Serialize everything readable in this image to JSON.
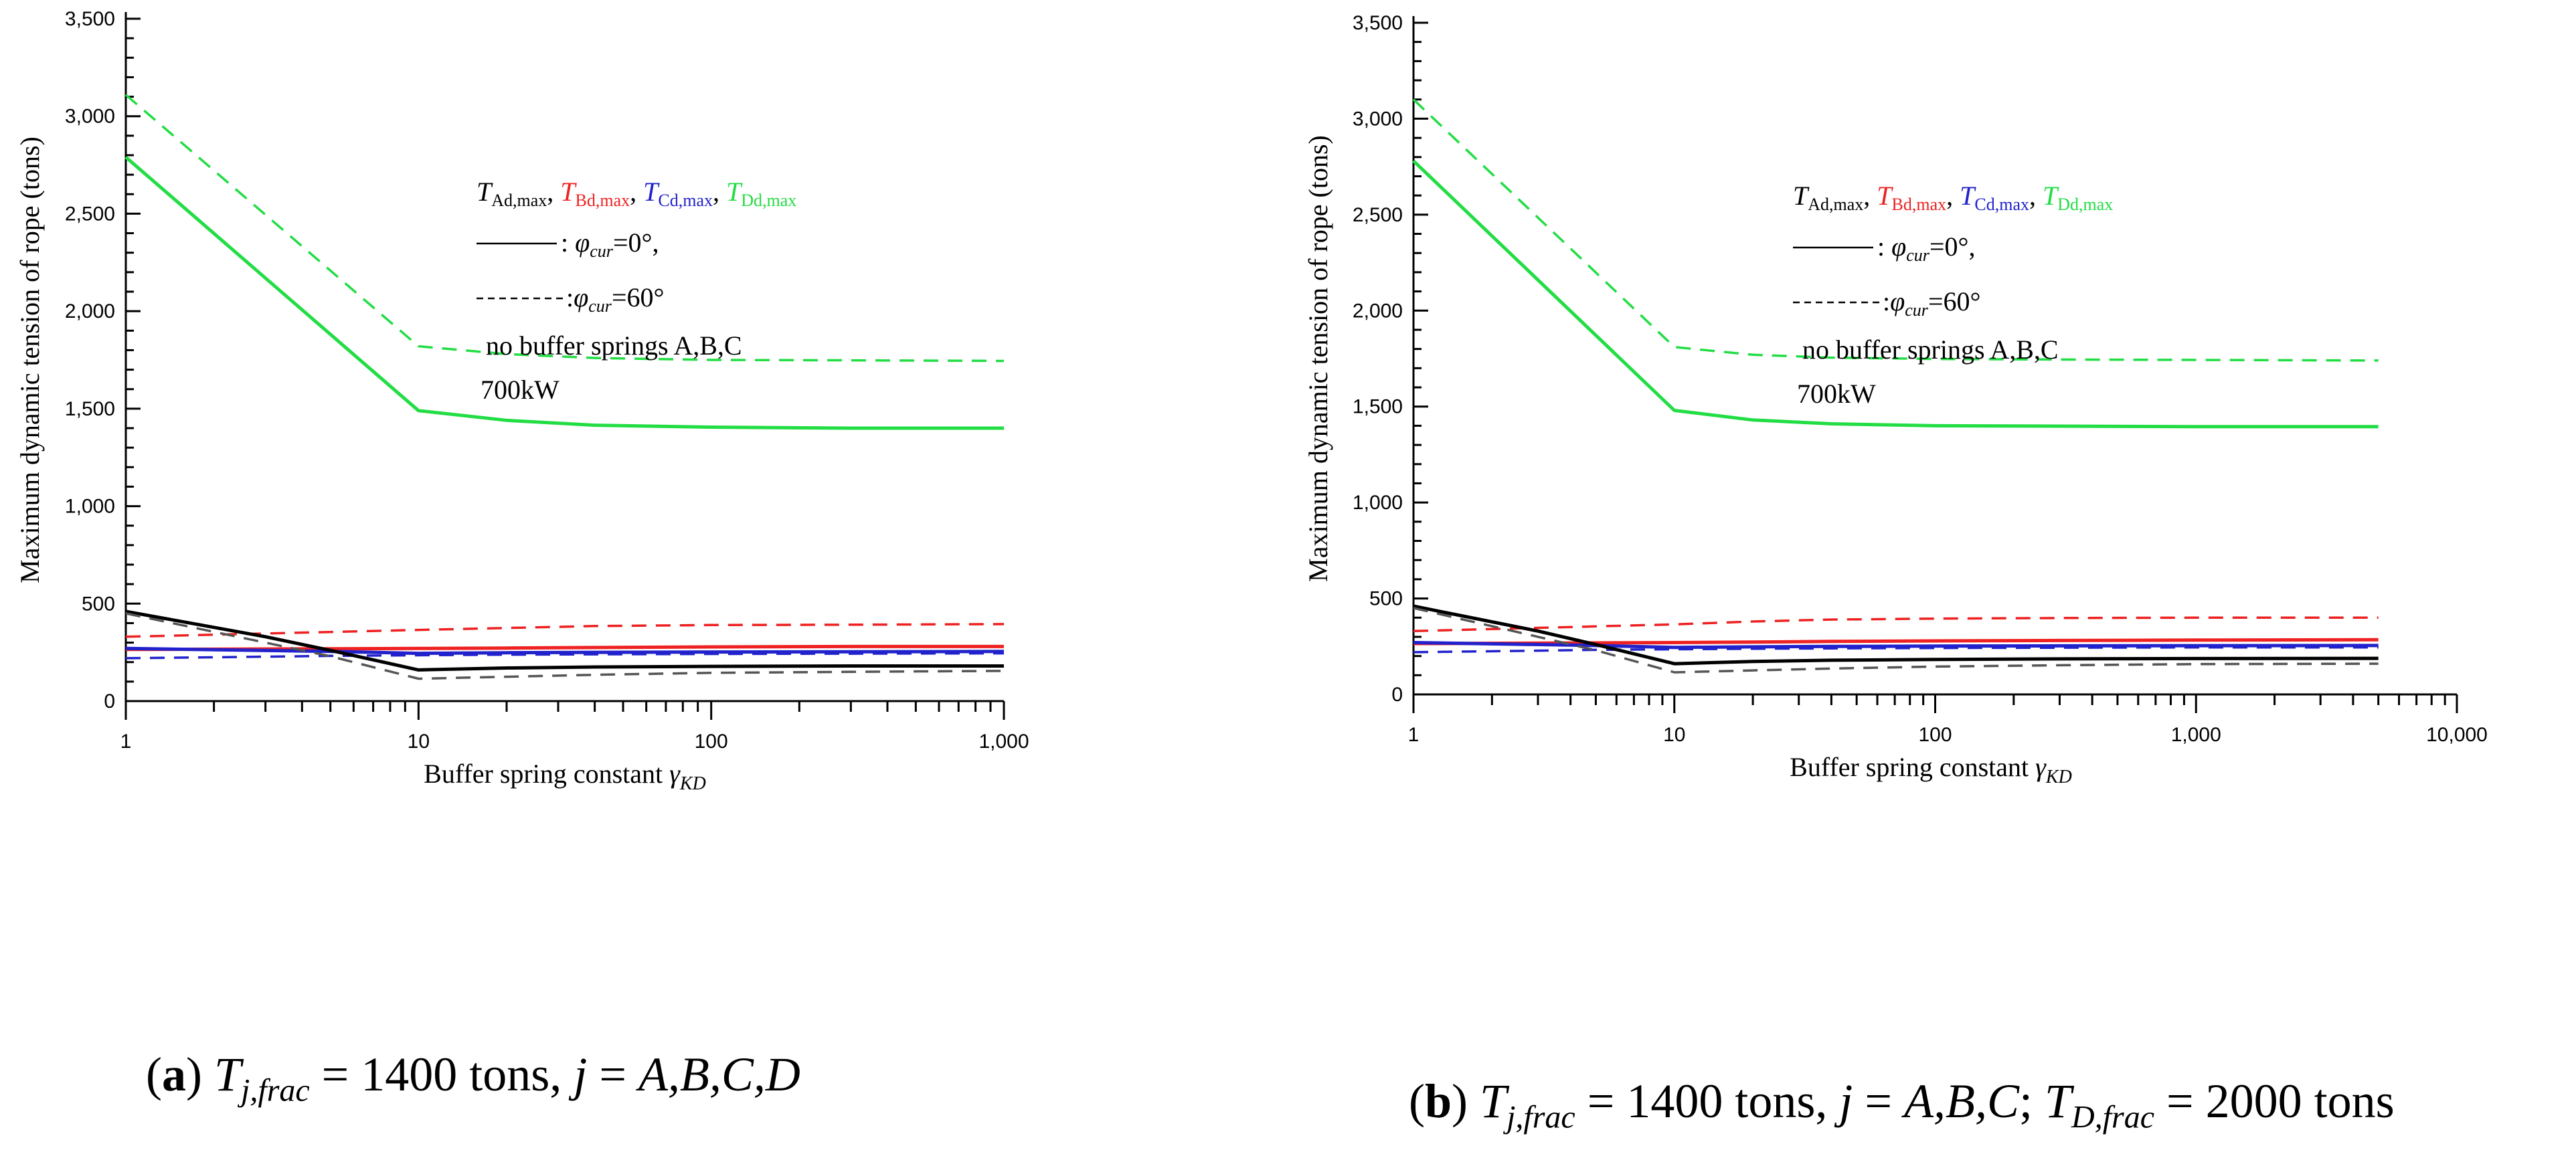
{
  "chart_data": [
    {
      "type": "line",
      "panel_label": "a",
      "caption": {
        "prefix": "(",
        "label": "a",
        "suffix": ")",
        "var_main": "T",
        "var_sub": "j,frac",
        "text1": " = 1400 tons, ",
        "var2": "j",
        "text2": " = ",
        "var3": "A,B,C,D",
        "text3": "",
        "var4": "",
        "var4_sub": "",
        "text4": ""
      },
      "xlabel": "Buffer spring constant ",
      "xlabel_symbol": "γ",
      "xlabel_symbol_sub": "KD",
      "ylabel": "Maximum dynamic tension of rope (tons)",
      "xscale": "log",
      "xlim": [
        1,
        1000
      ],
      "ylim": [
        0,
        3500
      ],
      "yticks": [
        0,
        500,
        1000,
        1500,
        2000,
        2500,
        3000,
        3500
      ],
      "ytick_labels": [
        "0",
        "500",
        "1,000",
        "1,500",
        "2,000",
        "2,500",
        "3,000",
        "3,500"
      ],
      "xticks": [
        1,
        10,
        100,
        1000
      ],
      "xtick_labels": [
        "1",
        "10",
        "100",
        "1,000"
      ],
      "legend": {
        "t_symbol": "T",
        "items": [
          {
            "sub": "Ad,max",
            "color": "#000000"
          },
          {
            "sub": "Bd,max",
            "color": "#ee2222"
          },
          {
            "sub": "Cd,max",
            "color": "#2222cc"
          },
          {
            "sub": "Dd,max",
            "color": "#22dd44"
          }
        ],
        "solid_prefix": ": ",
        "solid_phi": "φ",
        "solid_sub": "cur",
        "solid_value": "=0°,",
        "dashed_prefix": ":",
        "dashed_phi": "φ",
        "dashed_sub": "cur",
        "dashed_value": "=60°",
        "note1": "no buffer springs A,B,C",
        "note2": "700kW"
      },
      "series": [
        {
          "name": "T_Dd,max phi=0",
          "color": "#22dd44",
          "style": "solid",
          "x": [
            1,
            10,
            20,
            40,
            100,
            300,
            1000
          ],
          "y": [
            2790,
            1490,
            1440,
            1415,
            1405,
            1400,
            1400
          ]
        },
        {
          "name": "T_Dd,max phi=60",
          "color": "#22dd44",
          "style": "dashed",
          "x": [
            1,
            10,
            20,
            40,
            100,
            300,
            1000
          ],
          "y": [
            3110,
            1820,
            1780,
            1760,
            1750,
            1748,
            1745
          ]
        },
        {
          "name": "T_Bd,max phi=60",
          "color": "#ee2222",
          "style": "dashed",
          "x": [
            1,
            10,
            20,
            40,
            100,
            300,
            1000
          ],
          "y": [
            330,
            365,
            375,
            385,
            390,
            392,
            395
          ]
        },
        {
          "name": "T_Bd,max phi=0",
          "color": "#ee2222",
          "style": "solid",
          "x": [
            1,
            10,
            20,
            40,
            100,
            300,
            1000
          ],
          "y": [
            265,
            270,
            272,
            275,
            278,
            280,
            280
          ]
        },
        {
          "name": "T_Cd,max phi=0",
          "color": "#2222cc",
          "style": "solid",
          "x": [
            1,
            5,
            10,
            20,
            40,
            100,
            300,
            1000
          ],
          "y": [
            270,
            255,
            245,
            248,
            250,
            252,
            253,
            255
          ]
        },
        {
          "name": "T_Cd,max phi=60",
          "color": "#2222cc",
          "style": "dashed",
          "x": [
            1,
            3,
            5,
            10,
            20,
            40,
            100,
            1000
          ],
          "y": [
            220,
            228,
            232,
            235,
            238,
            240,
            242,
            245
          ]
        },
        {
          "name": "T_Ad,max phi=0",
          "color": "#000000",
          "style": "solid",
          "x": [
            1,
            3,
            5,
            10,
            20,
            40,
            100,
            300,
            1000
          ],
          "y": [
            460,
            330,
            260,
            160,
            170,
            175,
            178,
            180,
            180
          ]
        },
        {
          "name": "T_Ad,max phi=60",
          "color": "#555555",
          "style": "dashed",
          "x": [
            1,
            3,
            5,
            10,
            20,
            40,
            100,
            300,
            1000
          ],
          "y": [
            450,
            300,
            230,
            115,
            125,
            135,
            145,
            150,
            155
          ]
        }
      ]
    },
    {
      "type": "line",
      "panel_label": "b",
      "caption": {
        "prefix": "(",
        "label": "b",
        "suffix": ")",
        "var_main": "T",
        "var_sub": "j,frac",
        "text1": " = 1400 tons, ",
        "var2": "j",
        "text2": " = ",
        "var3": "A,B,C",
        "text3": "; ",
        "var4": "T",
        "var4_sub": "D,frac",
        "text4": " = 2000 tons"
      },
      "xlabel": "Buffer spring constant ",
      "xlabel_symbol": "γ",
      "xlabel_symbol_sub": "KD",
      "ylabel": "Maximum dynamic tension of rope (tons)",
      "xscale": "log",
      "xlim": [
        1,
        10000
      ],
      "ylim": [
        0,
        3500
      ],
      "yticks": [
        0,
        500,
        1000,
        1500,
        2000,
        2500,
        3000,
        3500
      ],
      "ytick_labels": [
        "0",
        "500",
        "1,000",
        "1,500",
        "2,000",
        "2,500",
        "3,000",
        "3,500"
      ],
      "xticks": [
        1,
        10,
        100,
        1000,
        10000
      ],
      "xtick_labels": [
        "1",
        "10",
        "100",
        "1,000",
        "10,000"
      ],
      "legend": {
        "t_symbol": "T",
        "items": [
          {
            "sub": "Ad,max",
            "color": "#000000"
          },
          {
            "sub": "Bd,max",
            "color": "#ee2222"
          },
          {
            "sub": "Cd,max",
            "color": "#2222cc"
          },
          {
            "sub": "Dd,max",
            "color": "#22dd44"
          }
        ],
        "solid_prefix": ": ",
        "solid_phi": "φ",
        "solid_sub": "cur",
        "solid_value": "=0°,",
        "dashed_prefix": ":",
        "dashed_phi": "φ",
        "dashed_sub": "cur",
        "dashed_value": "=60°",
        "note1": "no buffer springs A,B,C",
        "note2": "700kW"
      },
      "series": [
        {
          "name": "T_Dd,max phi=0",
          "color": "#22dd44",
          "style": "solid",
          "x": [
            1,
            10,
            20,
            40,
            100,
            300,
            1000,
            5000
          ],
          "y": [
            2780,
            1480,
            1430,
            1410,
            1400,
            1398,
            1395,
            1395
          ]
        },
        {
          "name": "T_Dd,max phi=60",
          "color": "#22dd44",
          "style": "dashed",
          "x": [
            1,
            10,
            20,
            40,
            100,
            300,
            1000,
            5000
          ],
          "y": [
            3100,
            1810,
            1770,
            1755,
            1748,
            1745,
            1743,
            1740
          ]
        },
        {
          "name": "T_Bd,max phi=60",
          "color": "#ee2222",
          "style": "dashed",
          "x": [
            1,
            10,
            20,
            40,
            100,
            300,
            1000,
            5000
          ],
          "y": [
            330,
            365,
            380,
            390,
            395,
            398,
            400,
            400
          ]
        },
        {
          "name": "T_Bd,max phi=0",
          "color": "#ee2222",
          "style": "solid",
          "x": [
            1,
            10,
            20,
            40,
            100,
            300,
            1000,
            5000
          ],
          "y": [
            265,
            270,
            273,
            276,
            279,
            281,
            283,
            285
          ]
        },
        {
          "name": "T_Cd,max phi=0",
          "color": "#2222cc",
          "style": "solid",
          "x": [
            1,
            5,
            10,
            20,
            40,
            100,
            300,
            1000,
            5000
          ],
          "y": [
            270,
            255,
            245,
            248,
            250,
            252,
            253,
            254,
            255
          ]
        },
        {
          "name": "T_Cd,max phi=60",
          "color": "#2222cc",
          "style": "dashed",
          "x": [
            1,
            3,
            5,
            10,
            20,
            40,
            100,
            1000,
            5000
          ],
          "y": [
            220,
            228,
            232,
            235,
            238,
            240,
            242,
            245,
            245
          ]
        },
        {
          "name": "T_Ad,max phi=0",
          "color": "#000000",
          "style": "solid",
          "x": [
            1,
            3,
            5,
            10,
            20,
            40,
            100,
            300,
            1000,
            5000
          ],
          "y": [
            460,
            330,
            260,
            160,
            172,
            178,
            182,
            185,
            187,
            188
          ]
        },
        {
          "name": "T_Ad,max phi=60",
          "color": "#555555",
          "style": "dashed",
          "x": [
            1,
            3,
            5,
            10,
            20,
            40,
            100,
            300,
            1000,
            5000
          ],
          "y": [
            450,
            300,
            230,
            115,
            125,
            135,
            145,
            152,
            158,
            160
          ]
        }
      ]
    }
  ]
}
